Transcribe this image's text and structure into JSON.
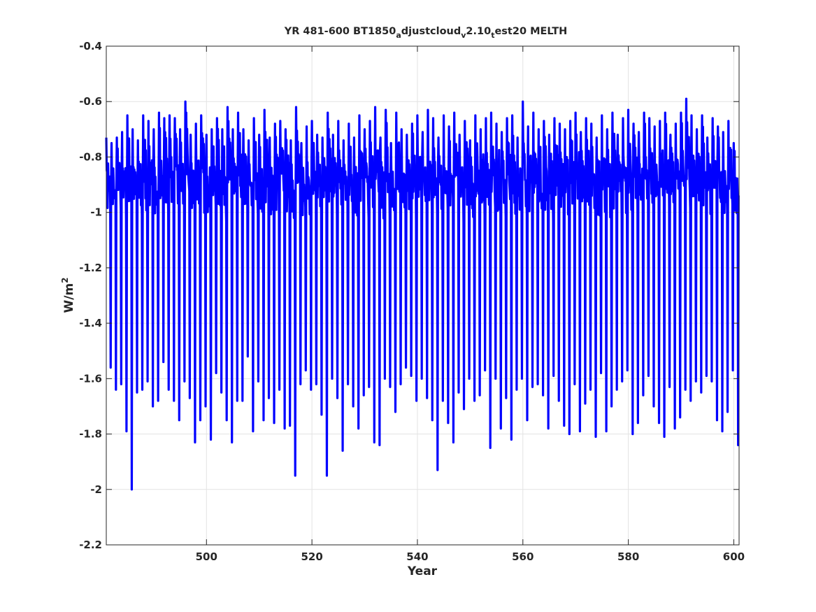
{
  "chart_data": {
    "type": "line",
    "title": {
      "prefix": "YR 481-600 BT1850",
      "segments": [
        {
          "sub": "a",
          "text": "djustcloud"
        },
        {
          "sub": "v",
          "text": "2.10"
        },
        {
          "sub": "t",
          "text": "est20 MELTH"
        }
      ]
    },
    "xlabel": "Year",
    "ylabel": {
      "base": "W/m",
      "sup": "2"
    },
    "xlim": [
      481,
      601
    ],
    "ylim": [
      -2.2,
      -0.4
    ],
    "xticks": [
      500,
      520,
      540,
      560,
      580,
      600
    ],
    "xtick_labels": [
      "500",
      "520",
      "540",
      "560",
      "580",
      "600"
    ],
    "yticks": [
      -2.2,
      -2.0,
      -1.8,
      -1.6,
      -1.4,
      -1.2,
      -1.0,
      -0.8,
      -0.6,
      -0.4
    ],
    "ytick_labels": [
      "-2.2",
      "-2",
      "-1.8",
      "-1.6",
      "-1.4",
      "-1.2",
      "-1",
      "-0.8",
      "-0.6",
      "-0.4"
    ],
    "grid": true,
    "series": [
      {
        "color": "#0000ff",
        "sampling": "monthly",
        "x_start": 481.0,
        "x_end": 600.9,
        "annual_min": [
          -1.56,
          -1.64,
          -1.62,
          -1.79,
          -2.0,
          -1.65,
          -1.64,
          -1.61,
          -1.7,
          -1.68,
          -1.54,
          -1.64,
          -1.68,
          -1.75,
          -1.61,
          -1.67,
          -1.83,
          -1.75,
          -1.7,
          -1.82,
          -1.58,
          -1.65,
          -1.75,
          -1.83,
          -1.68,
          -1.68,
          -1.52,
          -1.79,
          -1.61,
          -1.75,
          -1.67,
          -1.76,
          -1.64,
          -1.78,
          -1.77,
          -1.95,
          -1.62,
          -1.57,
          -1.64,
          -1.62,
          -1.73,
          -1.95,
          -1.6,
          -1.67,
          -1.86,
          -1.62,
          -1.7,
          -1.78,
          -1.66,
          -1.63,
          -1.83,
          -1.84,
          -1.6,
          -1.63,
          -1.72,
          -1.62,
          -1.56,
          -1.59,
          -1.68,
          -1.6,
          -1.67,
          -1.75,
          -1.93,
          -1.68,
          -1.76,
          -1.83,
          -1.65,
          -1.71,
          -1.6,
          -1.68,
          -1.66,
          -1.57,
          -1.85,
          -1.6,
          -1.78,
          -1.67,
          -1.82,
          -1.64,
          -1.6,
          -1.75,
          -1.63,
          -1.62,
          -1.66,
          -1.78,
          -1.59,
          -1.68,
          -1.77,
          -1.8,
          -1.62,
          -1.79,
          -1.69,
          -1.64,
          -1.81,
          -1.58,
          -1.79,
          -1.7,
          -1.64,
          -1.61,
          -1.57,
          -1.8,
          -1.76,
          -1.66,
          -1.59,
          -1.7,
          -1.76,
          -1.81,
          -1.63,
          -1.78,
          -1.74,
          -1.64,
          -1.68,
          -1.61,
          -1.65,
          -1.59,
          -1.61,
          -1.75,
          -1.79,
          -1.72,
          -1.57,
          -1.84
        ],
        "annual_max": [
          -0.73,
          -0.75,
          -0.73,
          -0.71,
          -0.65,
          -0.7,
          -0.74,
          -0.65,
          -0.67,
          -0.7,
          -0.64,
          -0.66,
          -0.65,
          -0.66,
          -0.7,
          -0.6,
          -0.72,
          -0.68,
          -0.65,
          -0.72,
          -0.7,
          -0.66,
          -0.7,
          -0.62,
          -0.7,
          -0.64,
          -0.7,
          -0.74,
          -0.66,
          -0.72,
          -0.63,
          -0.73,
          -0.68,
          -0.67,
          -0.7,
          -0.74,
          -0.62,
          -0.75,
          -0.69,
          -0.67,
          -0.72,
          -0.73,
          -0.64,
          -0.72,
          -0.67,
          -0.74,
          -0.68,
          -0.73,
          -0.65,
          -0.7,
          -0.67,
          -0.62,
          -0.73,
          -0.63,
          -0.75,
          -0.64,
          -0.7,
          -0.72,
          -0.68,
          -0.65,
          -0.71,
          -0.63,
          -0.66,
          -0.73,
          -0.65,
          -0.69,
          -0.64,
          -0.72,
          -0.67,
          -0.74,
          -0.65,
          -0.7,
          -0.66,
          -0.64,
          -0.68,
          -0.71,
          -0.66,
          -0.65,
          -0.73,
          -0.6,
          -0.69,
          -0.64,
          -0.7,
          -0.67,
          -0.72,
          -0.66,
          -0.68,
          -0.7,
          -0.67,
          -0.64,
          -0.71,
          -0.66,
          -0.68,
          -0.73,
          -0.65,
          -0.7,
          -0.64,
          -0.72,
          -0.66,
          -0.63,
          -0.68,
          -0.71,
          -0.64,
          -0.66,
          -0.69,
          -0.67,
          -0.64,
          -0.72,
          -0.68,
          -0.64,
          -0.59,
          -0.65,
          -0.7,
          -0.65,
          -0.73,
          -0.66,
          -0.69,
          -0.71,
          -0.67,
          -0.75
        ]
      }
    ]
  }
}
